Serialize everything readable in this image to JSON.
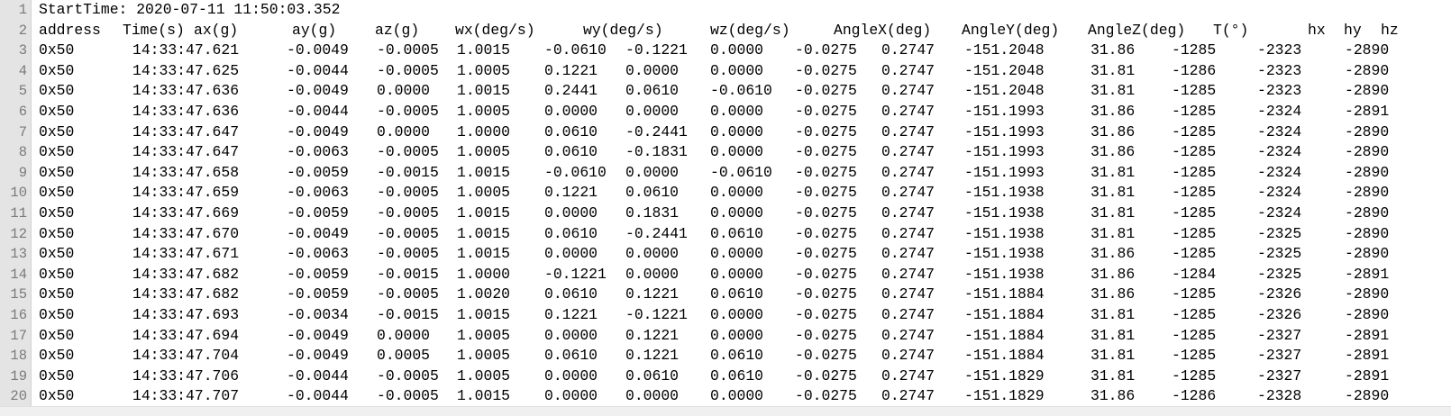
{
  "editor": {
    "start_line": "StartTime: 2020-07-11 11:50:03.352",
    "header": [
      "address",
      "Time(s)",
      "ax(g)",
      "ay(g)",
      "az(g)",
      "wx(deg/s)",
      "wy(deg/s)",
      "wz(deg/s)",
      "AngleX(deg)",
      "AngleY(deg)",
      "AngleZ(deg)",
      "T(°)",
      "hx",
      "hy",
      "hz"
    ],
    "rows": [
      [
        "0x50",
        "14:33:47.621",
        "-0.0049",
        "-0.0005",
        "1.0015",
        "-0.0610",
        "-0.1221",
        "0.0000",
        "-0.0275",
        "0.2747",
        "-151.2048",
        "31.86",
        "-1285",
        "-2323",
        "-2890"
      ],
      [
        "0x50",
        "14:33:47.625",
        "-0.0044",
        "-0.0005",
        "1.0005",
        "0.1221",
        "0.0000",
        "0.0000",
        "-0.0275",
        "0.2747",
        "-151.2048",
        "31.81",
        "-1286",
        "-2323",
        "-2890"
      ],
      [
        "0x50",
        "14:33:47.636",
        "-0.0049",
        "0.0000",
        "1.0015",
        "0.2441",
        "0.0610",
        "-0.0610",
        "-0.0275",
        "0.2747",
        "-151.2048",
        "31.81",
        "-1285",
        "-2323",
        "-2890"
      ],
      [
        "0x50",
        "14:33:47.636",
        "-0.0044",
        "-0.0005",
        "1.0005",
        "0.0000",
        "0.0000",
        "0.0000",
        "-0.0275",
        "0.2747",
        "-151.1993",
        "31.86",
        "-1285",
        "-2324",
        "-2891"
      ],
      [
        "0x50",
        "14:33:47.647",
        "-0.0049",
        "0.0000",
        "1.0000",
        "0.0610",
        "-0.2441",
        "0.0000",
        "-0.0275",
        "0.2747",
        "-151.1993",
        "31.86",
        "-1285",
        "-2324",
        "-2890"
      ],
      [
        "0x50",
        "14:33:47.647",
        "-0.0063",
        "-0.0005",
        "1.0005",
        "0.0610",
        "-0.1831",
        "0.0000",
        "-0.0275",
        "0.2747",
        "-151.1993",
        "31.86",
        "-1285",
        "-2324",
        "-2890"
      ],
      [
        "0x50",
        "14:33:47.658",
        "-0.0059",
        "-0.0015",
        "1.0015",
        "-0.0610",
        "0.0000",
        "-0.0610",
        "-0.0275",
        "0.2747",
        "-151.1993",
        "31.81",
        "-1285",
        "-2324",
        "-2890"
      ],
      [
        "0x50",
        "14:33:47.659",
        "-0.0063",
        "-0.0005",
        "1.0005",
        "0.1221",
        "0.0610",
        "0.0000",
        "-0.0275",
        "0.2747",
        "-151.1938",
        "31.81",
        "-1285",
        "-2324",
        "-2890"
      ],
      [
        "0x50",
        "14:33:47.669",
        "-0.0059",
        "-0.0005",
        "1.0015",
        "0.0000",
        "0.1831",
        "0.0000",
        "-0.0275",
        "0.2747",
        "-151.1938",
        "31.81",
        "-1285",
        "-2324",
        "-2890"
      ],
      [
        "0x50",
        "14:33:47.670",
        "-0.0049",
        "-0.0005",
        "1.0015",
        "0.0610",
        "-0.2441",
        "0.0610",
        "-0.0275",
        "0.2747",
        "-151.1938",
        "31.81",
        "-1285",
        "-2325",
        "-2890"
      ],
      [
        "0x50",
        "14:33:47.671",
        "-0.0063",
        "-0.0005",
        "1.0015",
        "0.0000",
        "0.0000",
        "0.0000",
        "-0.0275",
        "0.2747",
        "-151.1938",
        "31.86",
        "-1285",
        "-2325",
        "-2890"
      ],
      [
        "0x50",
        "14:33:47.682",
        "-0.0059",
        "-0.0015",
        "1.0000",
        "-0.1221",
        "0.0000",
        "0.0000",
        "-0.0275",
        "0.2747",
        "-151.1938",
        "31.86",
        "-1284",
        "-2325",
        "-2891"
      ],
      [
        "0x50",
        "14:33:47.682",
        "-0.0059",
        "-0.0005",
        "1.0020",
        "0.0610",
        "0.1221",
        "0.0610",
        "-0.0275",
        "0.2747",
        "-151.1884",
        "31.86",
        "-1285",
        "-2326",
        "-2890"
      ],
      [
        "0x50",
        "14:33:47.693",
        "-0.0034",
        "-0.0015",
        "1.0015",
        "0.1221",
        "-0.1221",
        "0.0000",
        "-0.0275",
        "0.2747",
        "-151.1884",
        "31.81",
        "-1285",
        "-2326",
        "-2890"
      ],
      [
        "0x50",
        "14:33:47.694",
        "-0.0049",
        "0.0000",
        "1.0005",
        "0.0000",
        "0.1221",
        "0.0000",
        "-0.0275",
        "0.2747",
        "-151.1884",
        "31.81",
        "-1285",
        "-2327",
        "-2891"
      ],
      [
        "0x50",
        "14:33:47.704",
        "-0.0049",
        "0.0005",
        "1.0005",
        "0.0610",
        "0.1221",
        "0.0610",
        "-0.0275",
        "0.2747",
        "-151.1884",
        "31.81",
        "-1285",
        "-2327",
        "-2891"
      ],
      [
        "0x50",
        "14:33:47.706",
        "-0.0044",
        "-0.0005",
        "1.0005",
        "0.0000",
        "0.0610",
        "0.0610",
        "-0.0275",
        "0.2747",
        "-151.1829",
        "31.81",
        "-1285",
        "-2327",
        "-2891"
      ],
      [
        "0x50",
        "14:33:47.707",
        "-0.0044",
        "-0.0005",
        "1.0015",
        "0.0000",
        "0.0000",
        "0.0000",
        "-0.0275",
        "0.2747",
        "-151.1829",
        "31.86",
        "-1286",
        "-2328",
        "-2890"
      ]
    ],
    "line_numbers": [
      "1",
      "2",
      "3",
      "4",
      "5",
      "6",
      "7",
      "8",
      "9",
      "10",
      "11",
      "12",
      "13",
      "14",
      "15",
      "16",
      "17",
      "18",
      "19",
      "20"
    ]
  }
}
